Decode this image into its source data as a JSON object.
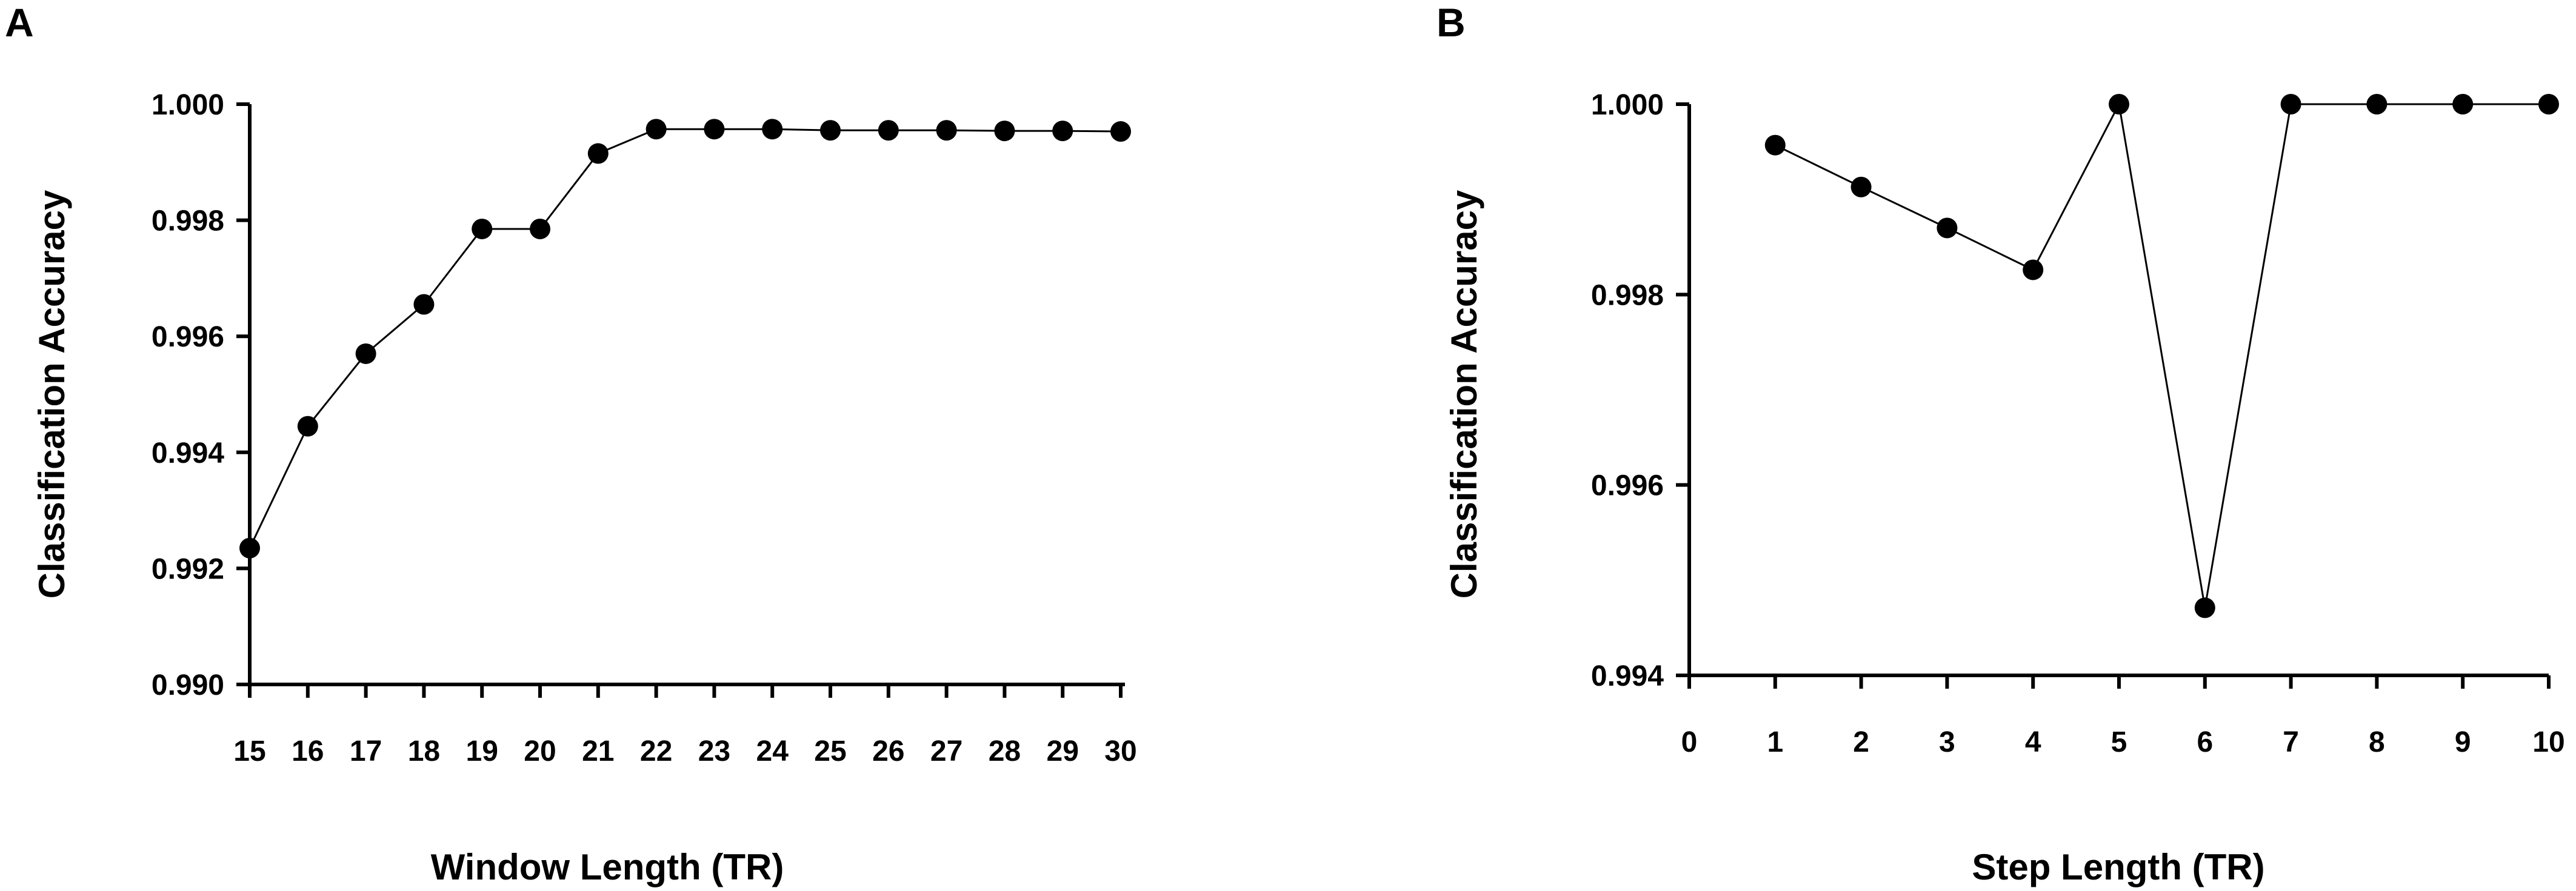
{
  "chart_data": [
    {
      "panel": "A",
      "type": "line",
      "xlabel": "Window Length (TR)",
      "ylabel": "Classification Accuracy",
      "xlim": [
        15,
        30
      ],
      "ylim": [
        0.99,
        1.0
      ],
      "xticks": [
        15,
        16,
        17,
        18,
        19,
        20,
        21,
        22,
        23,
        24,
        25,
        26,
        27,
        28,
        29,
        30
      ],
      "yticks": [
        "0.990",
        "0.992",
        "0.994",
        "0.996",
        "0.998",
        "1.000"
      ],
      "grid": false,
      "series": [
        {
          "x": [
            15,
            16,
            17,
            18,
            19,
            20,
            21,
            22,
            23,
            24,
            25,
            26,
            27,
            28,
            29,
            30
          ],
          "y": [
            0.99235,
            0.99445,
            0.9957,
            0.99655,
            0.99785,
            0.99785,
            0.99915,
            0.99957,
            0.99957,
            0.99957,
            0.99955,
            0.99955,
            0.99955,
            0.99954,
            0.99954,
            0.99953
          ]
        }
      ]
    },
    {
      "panel": "B",
      "type": "line",
      "xlabel": "Step Length (TR)",
      "ylabel": "Classification Accuracy",
      "xlim": [
        0,
        10
      ],
      "ylim": [
        0.994,
        1.0
      ],
      "xticks": [
        0,
        1,
        2,
        3,
        4,
        5,
        6,
        7,
        8,
        9,
        10
      ],
      "yticks": [
        "0.994",
        "0.996",
        "0.998",
        "1.000"
      ],
      "grid": false,
      "series": [
        {
          "x": [
            1,
            2,
            3,
            4,
            5,
            6,
            7,
            8,
            9,
            10
          ],
          "y": [
            0.99957,
            0.99913,
            0.9987,
            0.99826,
            1.0,
            0.99471,
            1.0,
            1.0,
            1.0,
            1.0
          ]
        }
      ]
    }
  ]
}
